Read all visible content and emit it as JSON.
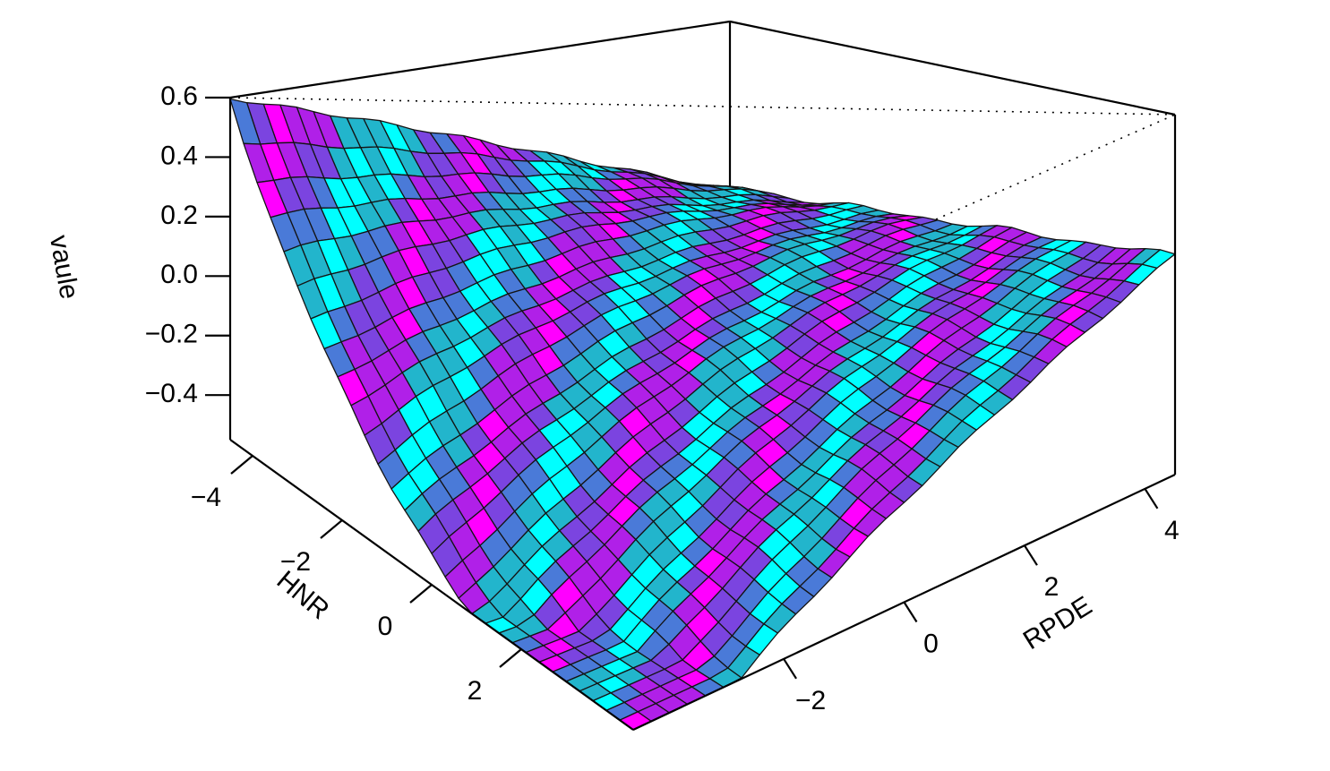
{
  "chart_data": {
    "type": "surface",
    "projection": "perspective",
    "xlabel": "HNR",
    "ylabel": "RPDE",
    "zlabel": "vaule",
    "xlim": [
      -4.5,
      4.5
    ],
    "ylim": [
      -4.5,
      4.5
    ],
    "zlim": [
      -0.55,
      0.6
    ],
    "x_ticks": [
      {
        "value": -4,
        "label": "−4"
      },
      {
        "value": -2,
        "label": "−2"
      },
      {
        "value": 0,
        "label": "0"
      },
      {
        "value": 2,
        "label": "2"
      }
    ],
    "y_ticks": [
      {
        "value": -2,
        "label": "−2"
      },
      {
        "value": 0,
        "label": "0"
      },
      {
        "value": 2,
        "label": "2"
      },
      {
        "value": 4,
        "label": "4"
      }
    ],
    "z_ticks": [
      {
        "value": 0.6,
        "label": "0.6"
      },
      {
        "value": 0.4,
        "label": "0.4"
      },
      {
        "value": 0.2,
        "label": "0.2"
      },
      {
        "value": 0.0,
        "label": "0.0"
      },
      {
        "value": -0.2,
        "label": "−0.2"
      },
      {
        "value": -0.4,
        "label": "−0.4"
      }
    ],
    "grid_size": 30,
    "surface": "value decreases from about 0.6 at HNR -4.5, RPDE -4.5 to about -0.5 at HNR 4.5, RPDE -4.5; near 0 for RPDE above 0",
    "corner_values": [
      {
        "HNR": -4.5,
        "RPDE": -4.5,
        "value": 0.6
      },
      {
        "HNR": 4.5,
        "RPDE": -4.5,
        "value": -0.5
      },
      {
        "HNR": 4.5,
        "RPDE": 4.5,
        "value": 0.15
      },
      {
        "HNR": -4.5,
        "RPDE": 4.5,
        "value": 0.05
      }
    ],
    "palette": [
      "#00ffff",
      "#22b5cc",
      "#4a7ad8",
      "#7b44e0",
      "#b020e8",
      "#ff00ff"
    ],
    "edge_color": "#141414"
  }
}
